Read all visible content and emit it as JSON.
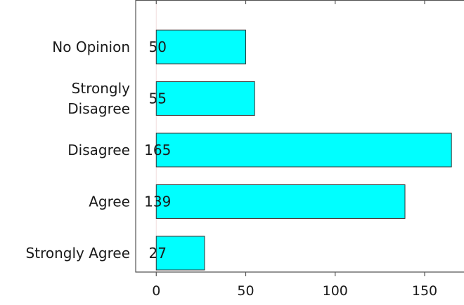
{
  "chart_data": {
    "type": "bar",
    "orientation": "horizontal",
    "categories": [
      "No Opinion",
      "Strongly Disagree",
      "Disagree",
      "Agree",
      "Strongly Agree"
    ],
    "category_lines": [
      [
        "No Opinion"
      ],
      [
        "Strongly",
        "Disagree"
      ],
      [
        "Disagree"
      ],
      [
        "Agree"
      ],
      [
        "Strongly Agree"
      ]
    ],
    "values": [
      50,
      55,
      165,
      139,
      27
    ],
    "value_labels": [
      "50",
      "55",
      "165",
      "139",
      "27"
    ],
    "xticks": [
      0,
      50,
      100,
      150
    ],
    "xtick_labels": [
      "0",
      "50",
      "100",
      "150"
    ],
    "xlim": [
      -11.5,
      172
    ],
    "title": "",
    "xlabel": "",
    "ylabel": "",
    "grid": false,
    "legend": "none",
    "bar_color": "#00ffff",
    "bar_edge_color": "#333333",
    "zero_line_color": "#f2dede"
  }
}
